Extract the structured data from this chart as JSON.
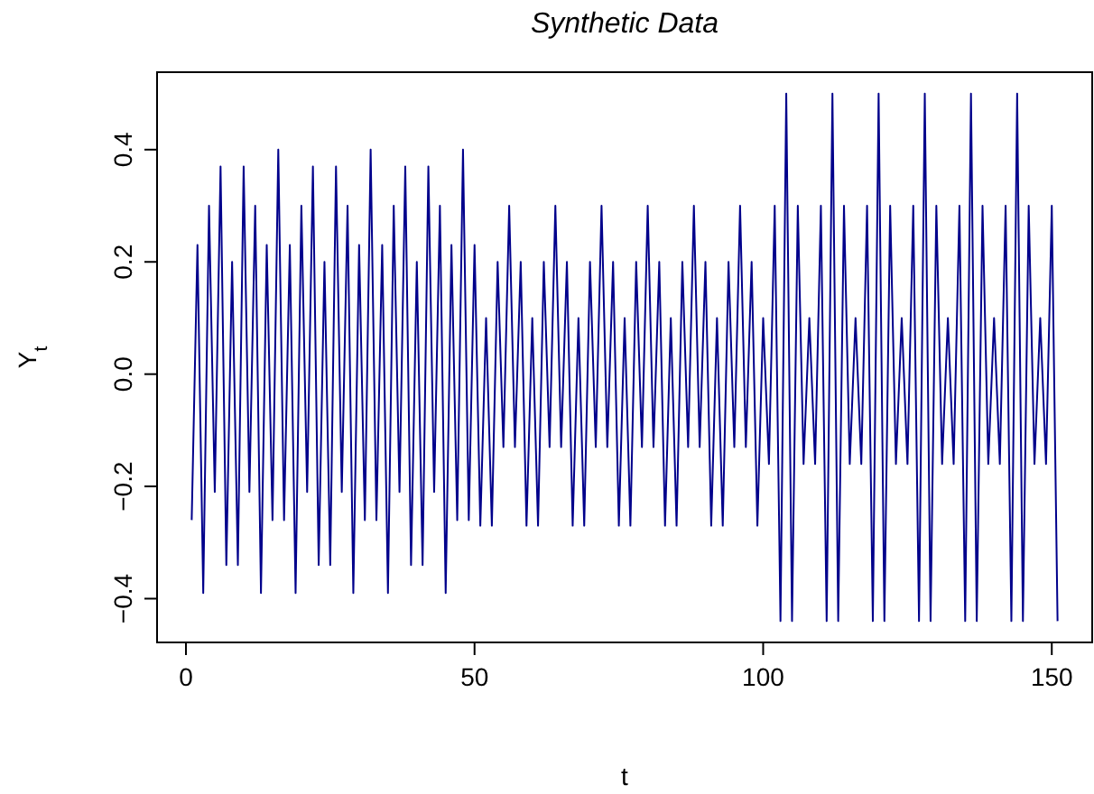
{
  "chart_data": {
    "type": "line",
    "title": "Synthetic Data",
    "xlabel": "t",
    "ylabel": "Y$_{t}$",
    "x": [
      1,
      2,
      3,
      4,
      5,
      6,
      7,
      8,
      9,
      10,
      11,
      12,
      13,
      14,
      15,
      16,
      17,
      18,
      19,
      20,
      21,
      22,
      23,
      24,
      25,
      26,
      27,
      28,
      29,
      30,
      31,
      32,
      33,
      34,
      35,
      36,
      37,
      38,
      39,
      40,
      41,
      42,
      43,
      44,
      45,
      46,
      47,
      48,
      49,
      50,
      51,
      52,
      53,
      54,
      55,
      56,
      57,
      58,
      59,
      60,
      61,
      62,
      63,
      64,
      65,
      66,
      67,
      68,
      69,
      70,
      71,
      72,
      73,
      74,
      75,
      76,
      77,
      78,
      79,
      80,
      81,
      82,
      83,
      84,
      85,
      86,
      87,
      88,
      89,
      90,
      91,
      92,
      93,
      94,
      95,
      96,
      97,
      98,
      99,
      100,
      101,
      102,
      103,
      104,
      105,
      106,
      107,
      108,
      109,
      110,
      111,
      112,
      113,
      114,
      115,
      116,
      117,
      118,
      119,
      120,
      121,
      122,
      123,
      124,
      125,
      126,
      127,
      128,
      129,
      130,
      131,
      132,
      133,
      134,
      135,
      136,
      137,
      138,
      139,
      140,
      141,
      142,
      143,
      144,
      145,
      146,
      147,
      148,
      149,
      150,
      151
    ],
    "series": [
      {
        "color": "#00008b",
        "values": [
          -0.26,
          0.23,
          -0.39,
          0.3,
          -0.21,
          0.37,
          -0.34,
          0.2,
          -0.34,
          0.37,
          -0.21,
          0.3,
          -0.39,
          0.23,
          -0.26,
          0.4,
          -0.26,
          0.23,
          -0.39,
          0.3,
          -0.21,
          0.37,
          -0.34,
          0.2,
          -0.34,
          0.37,
          -0.21,
          0.3,
          -0.39,
          0.23,
          -0.26,
          0.4,
          -0.26,
          0.23,
          -0.39,
          0.3,
          -0.21,
          0.37,
          -0.34,
          0.2,
          -0.34,
          0.37,
          -0.21,
          0.3,
          -0.39,
          0.23,
          -0.26,
          0.4,
          -0.26,
          0.23,
          -0.27,
          0.1,
          -0.27,
          0.2,
          -0.13,
          0.3,
          -0.13,
          0.2,
          -0.27,
          0.1,
          -0.27,
          0.2,
          -0.13,
          0.3,
          -0.13,
          0.2,
          -0.27,
          0.1,
          -0.27,
          0.2,
          -0.13,
          0.3,
          -0.13,
          0.2,
          -0.27,
          0.1,
          -0.27,
          0.2,
          -0.13,
          0.3,
          -0.13,
          0.2,
          -0.27,
          0.1,
          -0.27,
          0.2,
          -0.13,
          0.3,
          -0.13,
          0.2,
          -0.27,
          0.1,
          -0.27,
          0.2,
          -0.13,
          0.3,
          -0.13,
          0.2,
          -0.27,
          0.1,
          -0.16,
          0.3,
          -0.44,
          0.5,
          -0.44,
          0.3,
          -0.16,
          0.1,
          -0.16,
          0.3,
          -0.44,
          0.5,
          -0.44,
          0.3,
          -0.16,
          0.1,
          -0.16,
          0.3,
          -0.44,
          0.5,
          -0.44,
          0.3,
          -0.16,
          0.1,
          -0.16,
          0.3,
          -0.44,
          0.5,
          -0.44,
          0.3,
          -0.16,
          0.1,
          -0.16,
          0.3,
          -0.44,
          0.5,
          -0.44,
          0.3,
          -0.16,
          0.1,
          -0.16,
          0.3,
          -0.44,
          0.5,
          -0.44,
          0.3,
          -0.16,
          0.1,
          -0.16,
          0.3,
          -0.44
        ]
      }
    ],
    "xlim": [
      -5,
      157
    ],
    "xticks": [
      0,
      50,
      100,
      150
    ],
    "ylim": [
      -0.478,
      0.538
    ],
    "yticks": [
      -0.4,
      -0.2,
      {
        "value": 0,
        "label": "0.0"
      },
      0.2,
      0.4
    ],
    "grid": false
  }
}
